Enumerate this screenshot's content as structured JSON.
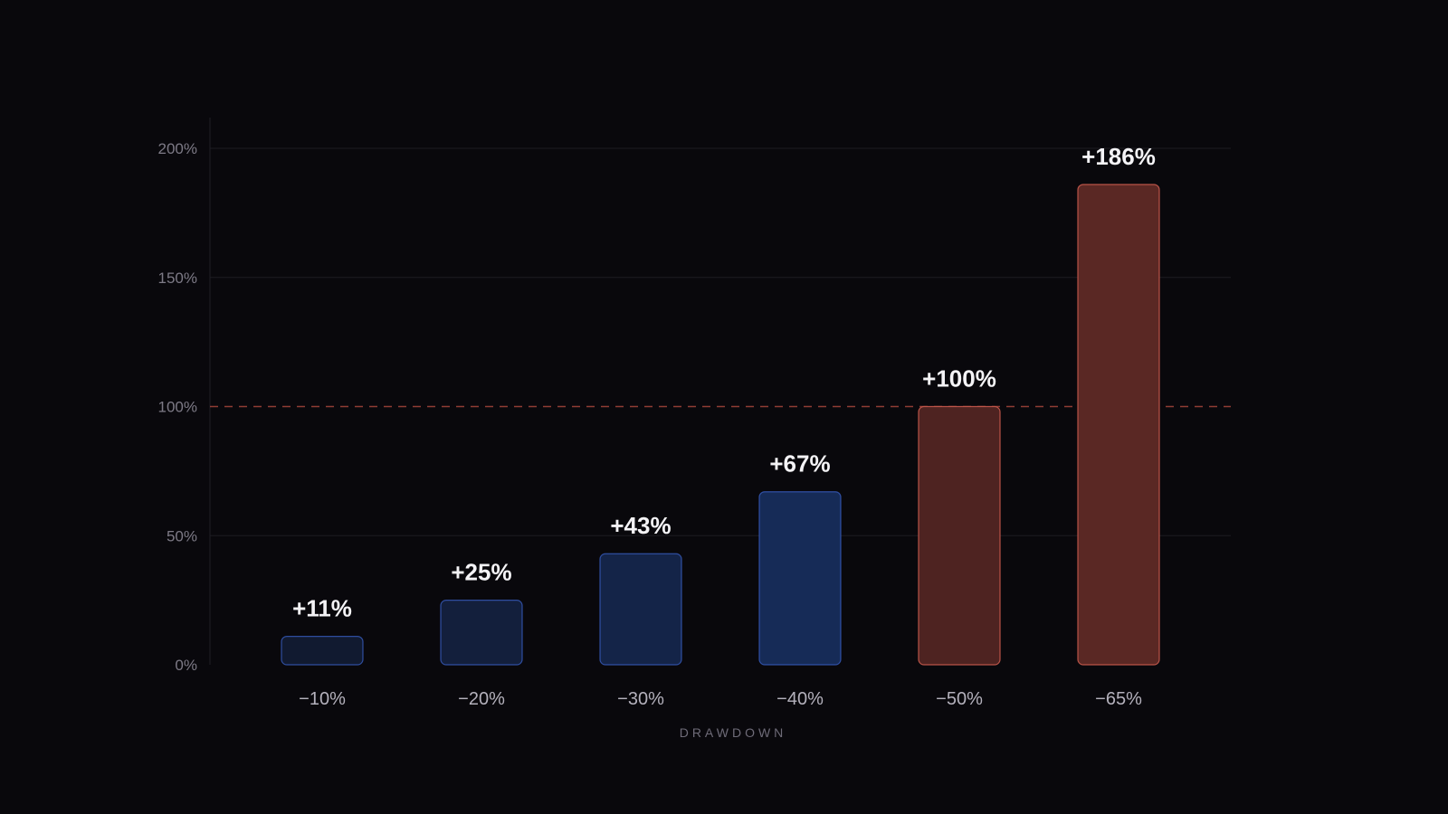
{
  "chart_data": {
    "type": "bar",
    "categories": [
      "−10%",
      "−20%",
      "−30%",
      "−40%",
      "−50%",
      "−65%"
    ],
    "values": [
      11,
      25,
      43,
      67,
      100,
      186
    ],
    "value_labels": [
      "+11%",
      "+25%",
      "+43%",
      "+67%",
      "+100%",
      "+186%"
    ],
    "title": "",
    "xlabel": "DRAWDOWN",
    "ylabel": "",
    "ylim": [
      0,
      200
    ],
    "yticks": [
      0,
      50,
      100,
      150,
      200
    ],
    "ytick_labels": [
      "0%",
      "50%",
      "100%",
      "150%",
      "200%"
    ],
    "reference_line": {
      "value": 100,
      "style": "dashed",
      "color": "#a8463c"
    },
    "grid": true,
    "legend": "none",
    "colors": {
      "background": "#09080c",
      "blue_fills": [
        "#111a30",
        "#131f3c",
        "#142448",
        "#162b57"
      ],
      "blue_stroke": "#3b62c9",
      "red_fill": "#4e2321",
      "red_fill_tall": "#5a2824",
      "red_stroke": "#c85a4e",
      "grid": "#1d1c22"
    }
  }
}
